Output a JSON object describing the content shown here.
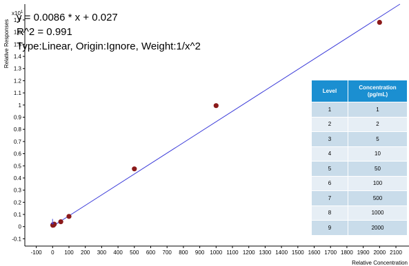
{
  "chart_data": {
    "type": "scatter",
    "x_axis": {
      "label": "Relative Concentration",
      "ticks": [
        -100,
        0,
        100,
        200,
        300,
        400,
        500,
        600,
        700,
        800,
        900,
        1000,
        1100,
        1200,
        1300,
        1400,
        1500,
        1600,
        1700,
        1800,
        1900,
        2000,
        2100
      ],
      "range": [
        -170,
        2180
      ]
    },
    "y_axis": {
      "label": "Relative Responses",
      "multiplier": "x10",
      "multiplier_exp": "1",
      "ticks": [
        -0.1,
        0,
        0.1,
        0.2,
        0.3,
        0.4,
        0.5,
        0.6,
        0.7,
        0.8,
        0.9,
        1,
        1.1,
        1.2,
        1.3,
        1.4,
        1.5,
        1.6,
        1.7
      ],
      "range": [
        -0.16,
        1.83
      ]
    },
    "series": [
      {
        "points": [
          {
            "x": 1,
            "y": 0.011
          },
          {
            "x": 2,
            "y": 0.015
          },
          {
            "x": 5,
            "y": 0.012
          },
          {
            "x": 10,
            "y": 0.02
          },
          {
            "x": 50,
            "y": 0.04
          },
          {
            "x": 100,
            "y": 0.084
          },
          {
            "x": 500,
            "y": 0.475
          },
          {
            "x": 1000,
            "y": 0.995
          },
          {
            "x": 2000,
            "y": 1.68
          }
        ],
        "color": "#8b1a1a"
      }
    ],
    "fit_line": {
      "slope": 0.00086,
      "intercept": 0.0027,
      "color": "#3b3bd9"
    },
    "annotations": {
      "equation": "y = 0.0086 * x  + 0.027",
      "r_squared": "R^2 = 0.991",
      "fit_type": "Type:Linear, Origin:Ignore, Weight:1/x^2"
    },
    "marker": {
      "x": 0,
      "y": 0.042,
      "glyph": "↓"
    },
    "table": {
      "headers": {
        "level": "Level",
        "concentration": "Concentration",
        "concentration_unit": "(pg/mL)"
      },
      "rows": [
        {
          "level": "1",
          "conc": "1"
        },
        {
          "level": "2",
          "conc": "2"
        },
        {
          "level": "3",
          "conc": "5"
        },
        {
          "level": "4",
          "conc": "10"
        },
        {
          "level": "5",
          "conc": "50"
        },
        {
          "level": "6",
          "conc": "100"
        },
        {
          "level": "7",
          "conc": "500"
        },
        {
          "level": "8",
          "conc": "1000"
        },
        {
          "level": "9",
          "conc": "2000"
        }
      ]
    }
  }
}
